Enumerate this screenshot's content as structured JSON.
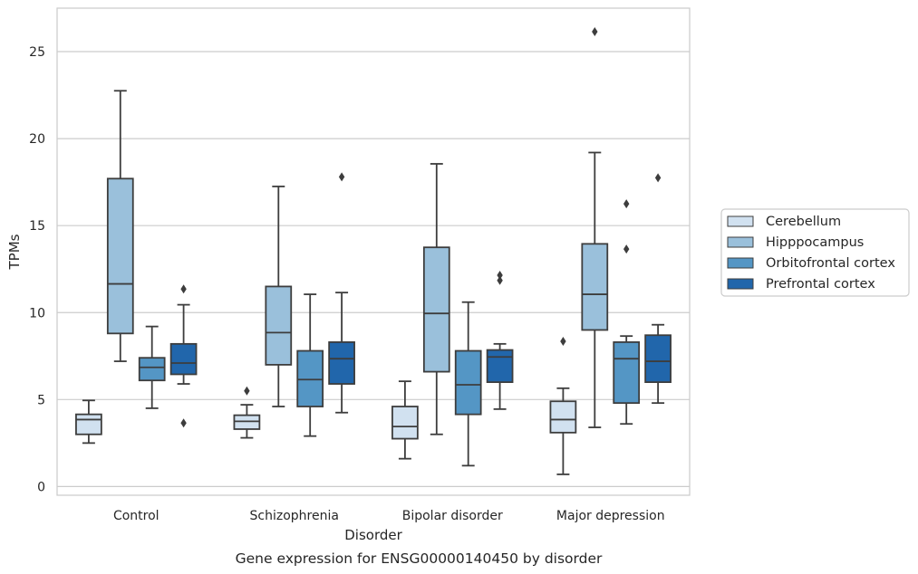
{
  "chart_data": {
    "type": "box",
    "caption": "Gene expression for ENSG00000140450 by disorder",
    "xlabel": "Disorder",
    "ylabel": "TPMs",
    "ylim": [
      -0.5,
      27.5
    ],
    "yticks": [
      0,
      5,
      10,
      15,
      20,
      25
    ],
    "grid": "horizontal",
    "legend_position": "right",
    "categories": [
      "Control",
      "Schizophrenia",
      "Bipolar disorder",
      "Major depression"
    ],
    "series": [
      {
        "name": "Cerebellum",
        "color": "#d1e1f0",
        "boxes": [
          {
            "whislo": 2.5,
            "q1": 3.0,
            "med": 3.85,
            "q3": 4.15,
            "whishi": 4.95,
            "fliers": []
          },
          {
            "whislo": 2.8,
            "q1": 3.3,
            "med": 3.75,
            "q3": 4.1,
            "whishi": 4.7,
            "fliers": [
              5.5
            ]
          },
          {
            "whislo": 1.6,
            "q1": 2.75,
            "med": 3.45,
            "q3": 4.6,
            "whishi": 6.05,
            "fliers": []
          },
          {
            "whislo": 0.7,
            "q1": 3.1,
            "med": 3.85,
            "q3": 4.9,
            "whishi": 5.65,
            "fliers": [
              8.35
            ]
          }
        ]
      },
      {
        "name": "Hipppocampus",
        "color": "#9ac0db",
        "boxes": [
          {
            "whislo": 7.2,
            "q1": 8.8,
            "med": 11.65,
            "q3": 17.7,
            "whishi": 22.75,
            "fliers": []
          },
          {
            "whislo": 4.6,
            "q1": 7.0,
            "med": 8.85,
            "q3": 11.5,
            "whishi": 17.25,
            "fliers": []
          },
          {
            "whislo": 3.0,
            "q1": 6.6,
            "med": 9.95,
            "q3": 13.75,
            "whishi": 18.55,
            "fliers": []
          },
          {
            "whislo": 3.4,
            "q1": 9.0,
            "med": 11.05,
            "q3": 13.95,
            "whishi": 19.2,
            "fliers": [
              26.15
            ]
          }
        ]
      },
      {
        "name": "Orbitofrontal cortex",
        "color": "#5496c5",
        "boxes": [
          {
            "whislo": 4.5,
            "q1": 6.1,
            "med": 6.85,
            "q3": 7.4,
            "whishi": 9.2,
            "fliers": []
          },
          {
            "whislo": 2.9,
            "q1": 4.6,
            "med": 6.15,
            "q3": 7.8,
            "whishi": 11.05,
            "fliers": []
          },
          {
            "whislo": 1.2,
            "q1": 4.15,
            "med": 5.85,
            "q3": 7.8,
            "whishi": 10.6,
            "fliers": []
          },
          {
            "whislo": 3.6,
            "q1": 4.8,
            "med": 7.35,
            "q3": 8.3,
            "whishi": 8.65,
            "fliers": [
              13.65,
              16.25
            ]
          }
        ]
      },
      {
        "name": "Prefrontal cortex",
        "color": "#2166ab",
        "boxes": [
          {
            "whislo": 5.9,
            "q1": 6.45,
            "med": 7.1,
            "q3": 8.2,
            "whishi": 10.45,
            "fliers": [
              3.65,
              11.35
            ]
          },
          {
            "whislo": 4.25,
            "q1": 5.9,
            "med": 7.35,
            "q3": 8.3,
            "whishi": 11.15,
            "fliers": [
              17.8
            ]
          },
          {
            "whislo": 4.45,
            "q1": 6.0,
            "med": 7.45,
            "q3": 7.85,
            "whishi": 8.2,
            "fliers": [
              11.85,
              12.15
            ]
          },
          {
            "whislo": 4.8,
            "q1": 6.0,
            "med": 7.2,
            "q3": 8.7,
            "whishi": 9.3,
            "fliers": [
              17.75
            ]
          }
        ]
      }
    ]
  }
}
